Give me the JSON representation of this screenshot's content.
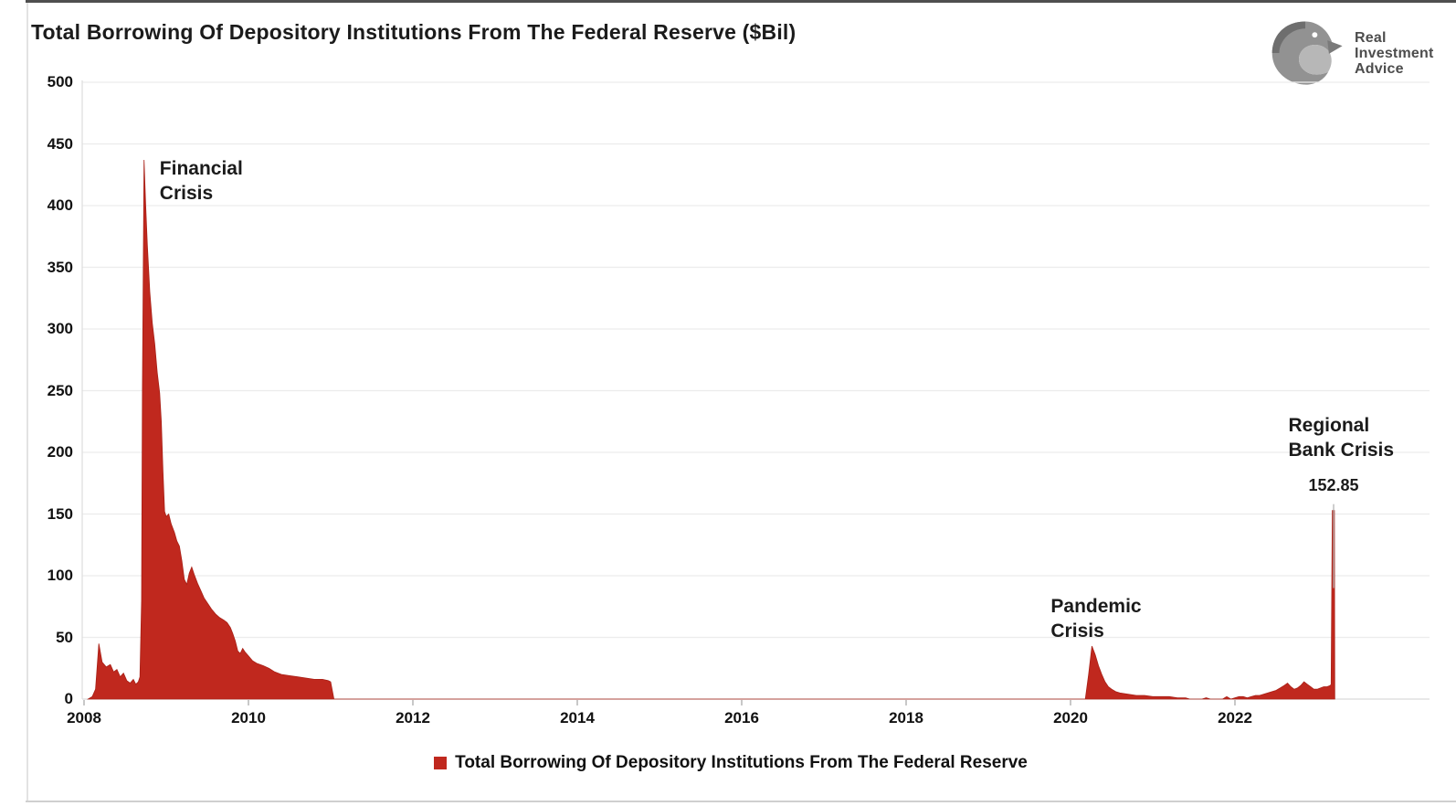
{
  "header": {
    "title": "Total Borrowing Of Depository Institutions From The Federal Reserve ($Bil)",
    "logo": {
      "lines": "Real\nInvestment\nAdvice"
    }
  },
  "legend": {
    "swatch_color": "#C0281E",
    "label": "Total Borrowing Of Depository Institutions From The Federal Reserve"
  },
  "chart_data": {
    "type": "area",
    "title": "Total Borrowing Of Depository Institutions From The Federal Reserve ($Bil)",
    "xlabel": "",
    "ylabel": "",
    "ylim": [
      0,
      500
    ],
    "xlim": [
      2008,
      2023.45
    ],
    "grid": "horizontal-light",
    "legend_position": "bottom-center",
    "y_ticks": [
      0,
      50,
      100,
      150,
      200,
      250,
      300,
      350,
      400,
      450,
      500
    ],
    "x_ticks": [
      2008,
      2010,
      2012,
      2014,
      2016,
      2018,
      2020,
      2022
    ],
    "series": [
      {
        "name": "Total Borrowing Of Depository Institutions From The Federal Reserve",
        "color": "#C0281E",
        "points": [
          [
            2008.05,
            0
          ],
          [
            2008.1,
            2
          ],
          [
            2008.14,
            8
          ],
          [
            2008.18,
            45
          ],
          [
            2008.22,
            30
          ],
          [
            2008.27,
            26
          ],
          [
            2008.32,
            28
          ],
          [
            2008.36,
            22
          ],
          [
            2008.4,
            24
          ],
          [
            2008.44,
            18
          ],
          [
            2008.48,
            21
          ],
          [
            2008.52,
            15
          ],
          [
            2008.56,
            13
          ],
          [
            2008.6,
            16
          ],
          [
            2008.63,
            12
          ],
          [
            2008.66,
            14
          ],
          [
            2008.68,
            18
          ],
          [
            2008.7,
            80
          ],
          [
            2008.71,
            250
          ],
          [
            2008.73,
            437
          ],
          [
            2008.75,
            400
          ],
          [
            2008.77,
            368
          ],
          [
            2008.8,
            330
          ],
          [
            2008.83,
            305
          ],
          [
            2008.86,
            288
          ],
          [
            2008.89,
            265
          ],
          [
            2008.92,
            248
          ],
          [
            2008.94,
            225
          ],
          [
            2008.96,
            185
          ],
          [
            2008.98,
            152
          ],
          [
            2009.0,
            148
          ],
          [
            2009.03,
            150
          ],
          [
            2009.06,
            142
          ],
          [
            2009.1,
            135
          ],
          [
            2009.13,
            128
          ],
          [
            2009.16,
            124
          ],
          [
            2009.19,
            112
          ],
          [
            2009.22,
            97
          ],
          [
            2009.25,
            93
          ],
          [
            2009.28,
            102
          ],
          [
            2009.31,
            107
          ],
          [
            2009.34,
            101
          ],
          [
            2009.38,
            94
          ],
          [
            2009.42,
            88
          ],
          [
            2009.46,
            82
          ],
          [
            2009.5,
            78
          ],
          [
            2009.55,
            73
          ],
          [
            2009.6,
            69
          ],
          [
            2009.65,
            66
          ],
          [
            2009.7,
            64
          ],
          [
            2009.74,
            62
          ],
          [
            2009.78,
            58
          ],
          [
            2009.81,
            53
          ],
          [
            2009.84,
            47
          ],
          [
            2009.87,
            39
          ],
          [
            2009.9,
            37
          ],
          [
            2009.93,
            41
          ],
          [
            2009.96,
            38
          ],
          [
            2010.0,
            35
          ],
          [
            2010.05,
            31
          ],
          [
            2010.1,
            29
          ],
          [
            2010.18,
            27
          ],
          [
            2010.25,
            25
          ],
          [
            2010.32,
            22
          ],
          [
            2010.4,
            20
          ],
          [
            2010.5,
            19
          ],
          [
            2010.6,
            18
          ],
          [
            2010.7,
            17
          ],
          [
            2010.8,
            16
          ],
          [
            2010.9,
            16
          ],
          [
            2010.97,
            15
          ],
          [
            2011.0,
            14
          ],
          [
            2011.04,
            0
          ],
          [
            2012.0,
            0
          ],
          [
            2014.0,
            0
          ],
          [
            2016.0,
            0
          ],
          [
            2018.0,
            0
          ],
          [
            2019.9,
            0
          ],
          [
            2020.18,
            0
          ],
          [
            2020.22,
            20
          ],
          [
            2020.26,
            43
          ],
          [
            2020.3,
            36
          ],
          [
            2020.34,
            27
          ],
          [
            2020.38,
            20
          ],
          [
            2020.42,
            14
          ],
          [
            2020.46,
            10
          ],
          [
            2020.5,
            8
          ],
          [
            2020.55,
            6
          ],
          [
            2020.6,
            5
          ],
          [
            2020.7,
            4
          ],
          [
            2020.8,
            3
          ],
          [
            2020.9,
            3
          ],
          [
            2021.0,
            2
          ],
          [
            2021.1,
            2
          ],
          [
            2021.2,
            2
          ],
          [
            2021.3,
            1
          ],
          [
            2021.4,
            1
          ],
          [
            2021.45,
            0
          ],
          [
            2021.6,
            0
          ],
          [
            2021.65,
            1
          ],
          [
            2021.7,
            0
          ],
          [
            2021.85,
            0
          ],
          [
            2021.9,
            2
          ],
          [
            2021.95,
            0
          ],
          [
            2022.0,
            1
          ],
          [
            2022.05,
            2
          ],
          [
            2022.1,
            2
          ],
          [
            2022.15,
            1
          ],
          [
            2022.2,
            2
          ],
          [
            2022.25,
            3
          ],
          [
            2022.3,
            3
          ],
          [
            2022.35,
            4
          ],
          [
            2022.4,
            5
          ],
          [
            2022.45,
            6
          ],
          [
            2022.5,
            7
          ],
          [
            2022.55,
            9
          ],
          [
            2022.6,
            11
          ],
          [
            2022.64,
            13
          ],
          [
            2022.68,
            10
          ],
          [
            2022.72,
            8
          ],
          [
            2022.76,
            9
          ],
          [
            2022.8,
            11
          ],
          [
            2022.84,
            14
          ],
          [
            2022.88,
            12
          ],
          [
            2022.92,
            10
          ],
          [
            2022.96,
            8
          ],
          [
            2023.0,
            8
          ],
          [
            2023.04,
            9
          ],
          [
            2023.08,
            10
          ],
          [
            2023.12,
            10
          ],
          [
            2023.16,
            11
          ],
          [
            2023.17,
            12
          ],
          [
            2023.185,
            152.85
          ],
          [
            2023.21,
            152.85
          ],
          [
            2023.215,
            0
          ]
        ]
      }
    ],
    "annotations": [
      {
        "id": "financial-crisis",
        "text": "Financial\nCrisis",
        "x_year": 2008.92,
        "y_bil": 440,
        "align": "left"
      },
      {
        "id": "pandemic-crisis",
        "text": "Pandemic\nCrisis",
        "x_year": 2019.76,
        "y_bil": 85,
        "align": "left"
      },
      {
        "id": "regional-bank-crisis",
        "text": "Regional\nBank Crisis",
        "x_year": 2022.65,
        "y_bil": 232,
        "align": "left"
      },
      {
        "id": "peak-value",
        "text": "152.85",
        "x_year": 2023.2,
        "y_bil": 181,
        "align": "center"
      }
    ],
    "callout_line": {
      "x_year": 2023.2,
      "from_bil": 158,
      "to_bil": 90,
      "color": "#b3b3b3"
    }
  }
}
